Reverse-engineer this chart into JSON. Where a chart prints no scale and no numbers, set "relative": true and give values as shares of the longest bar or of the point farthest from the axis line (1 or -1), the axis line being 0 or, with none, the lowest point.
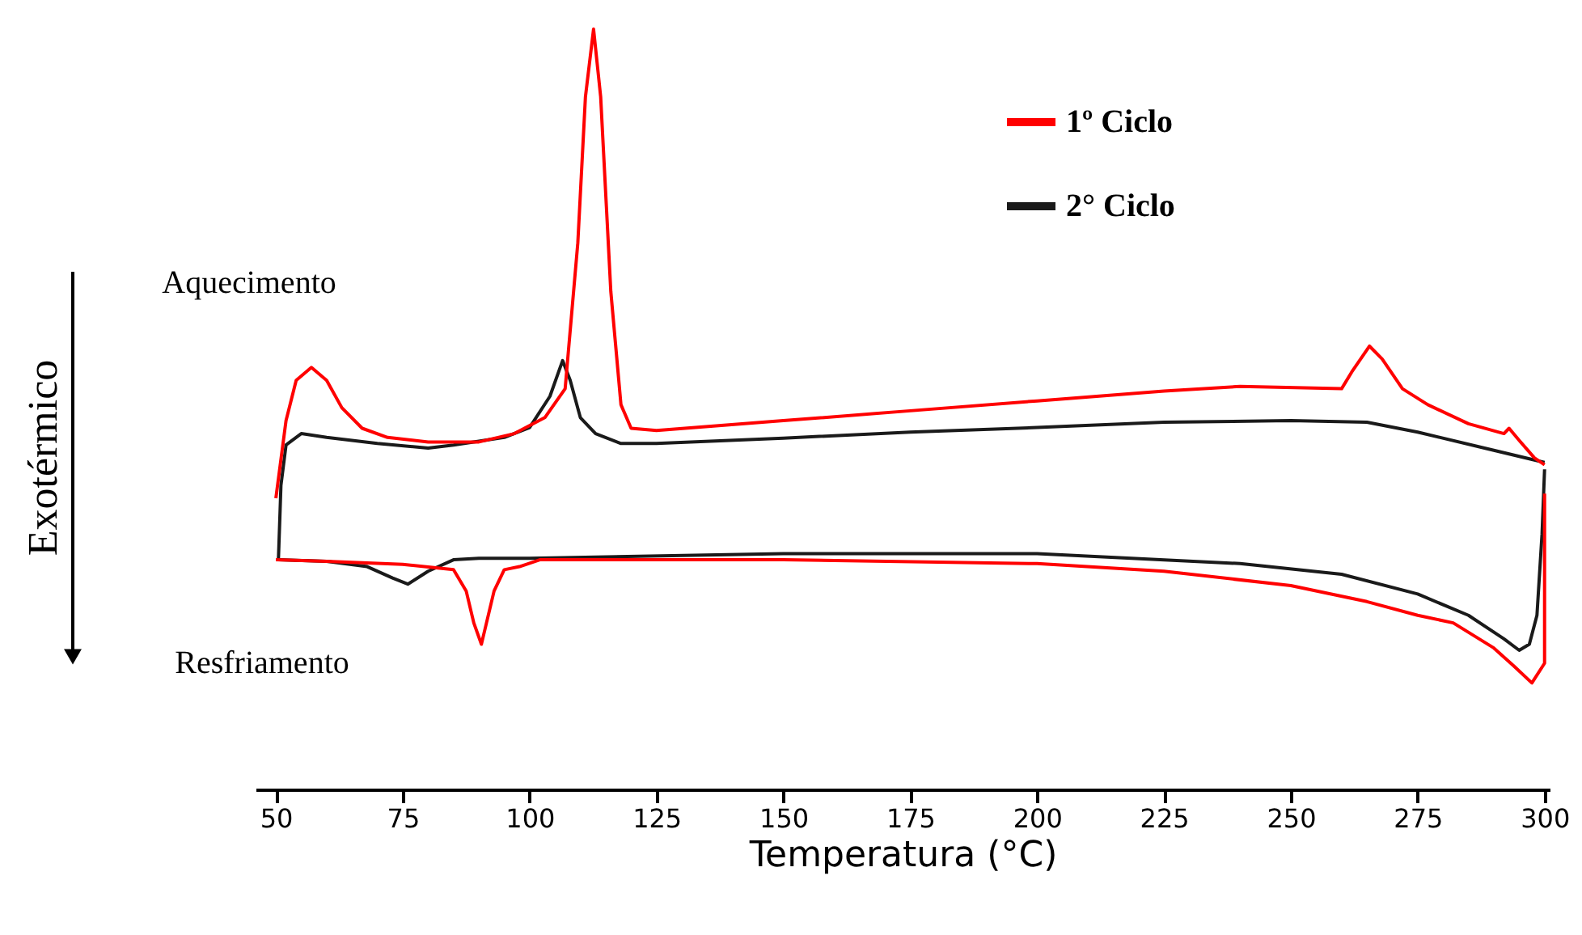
{
  "chart_data": {
    "type": "line",
    "relative": true,
    "xlabel": "Temperatura (°C)",
    "ylabel": "Exotérmico",
    "annotations": [
      "Aquecimento",
      "Resfriamento"
    ],
    "xlim": [
      46,
      301
    ],
    "xticks": [
      50,
      75,
      100,
      125,
      150,
      175,
      200,
      225,
      250,
      275,
      300
    ],
    "legend": "top right",
    "series": [
      {
        "name": "1º Ciclo",
        "color": "#ff0000",
        "x": [
          50,
          52,
          54,
          57,
          60,
          63,
          67,
          72,
          80,
          90,
          97,
          103,
          107,
          109.5,
          111,
          112.6,
          114,
          116,
          118,
          120,
          125,
          150,
          175,
          200,
          225,
          240,
          260,
          262,
          265.5,
          268,
          272,
          277,
          285,
          292,
          293,
          295,
          298,
          300
        ],
        "values": [
          0.383,
          0.485,
          0.538,
          0.555,
          0.538,
          0.502,
          0.475,
          0.463,
          0.457,
          0.457,
          0.468,
          0.489,
          0.527,
          0.719,
          0.911,
          1.0,
          0.911,
          0.655,
          0.506,
          0.475,
          0.472,
          0.485,
          0.498,
          0.511,
          0.524,
          0.53,
          0.527,
          0.549,
          0.583,
          0.566,
          0.527,
          0.506,
          0.481,
          0.468,
          0.475,
          0.459,
          0.436,
          0.427
        ]
      },
      {
        "color": "#ff0000",
        "x": [
          300,
          300,
          297.5,
          294,
          290,
          282,
          275,
          265,
          250,
          225,
          200,
          150,
          120,
          102,
          98,
          95,
          93,
          91.5,
          90.5,
          89,
          87.5,
          85,
          75,
          60,
          50
        ],
        "values": [
          0.389,
          0.166,
          0.14,
          0.162,
          0.186,
          0.219,
          0.229,
          0.247,
          0.268,
          0.287,
          0.297,
          0.302,
          0.302,
          0.302,
          0.293,
          0.289,
          0.261,
          0.219,
          0.191,
          0.219,
          0.261,
          0.289,
          0.296,
          0.3,
          0.302
        ]
      },
      {
        "name": "2° Ciclo",
        "color": "#1a1a1a",
        "x": [
          50.5,
          51,
          52,
          55,
          60,
          70,
          80,
          85,
          95,
          100,
          104,
          106.5,
          108,
          110,
          113,
          118,
          125,
          150,
          175,
          200,
          225,
          250,
          265,
          275,
          290,
          300
        ],
        "values": [
          0.302,
          0.4,
          0.453,
          0.468,
          0.463,
          0.455,
          0.449,
          0.453,
          0.463,
          0.476,
          0.517,
          0.564,
          0.538,
          0.489,
          0.468,
          0.455,
          0.455,
          0.462,
          0.47,
          0.476,
          0.483,
          0.485,
          0.483,
          0.47,
          0.446,
          0.43
        ]
      },
      {
        "color": "#1a1a1a",
        "x": [
          300,
          299.5,
          298.5,
          297,
          295,
          292,
          285,
          275,
          260,
          240,
          200,
          150,
          100,
          90,
          85,
          80,
          76,
          73,
          68,
          60,
          50.5
        ],
        "values": [
          0.421,
          0.336,
          0.229,
          0.191,
          0.183,
          0.198,
          0.229,
          0.257,
          0.283,
          0.297,
          0.31,
          0.31,
          0.304,
          0.304,
          0.302,
          0.287,
          0.27,
          0.278,
          0.293,
          0.3,
          0.302
        ]
      }
    ]
  }
}
